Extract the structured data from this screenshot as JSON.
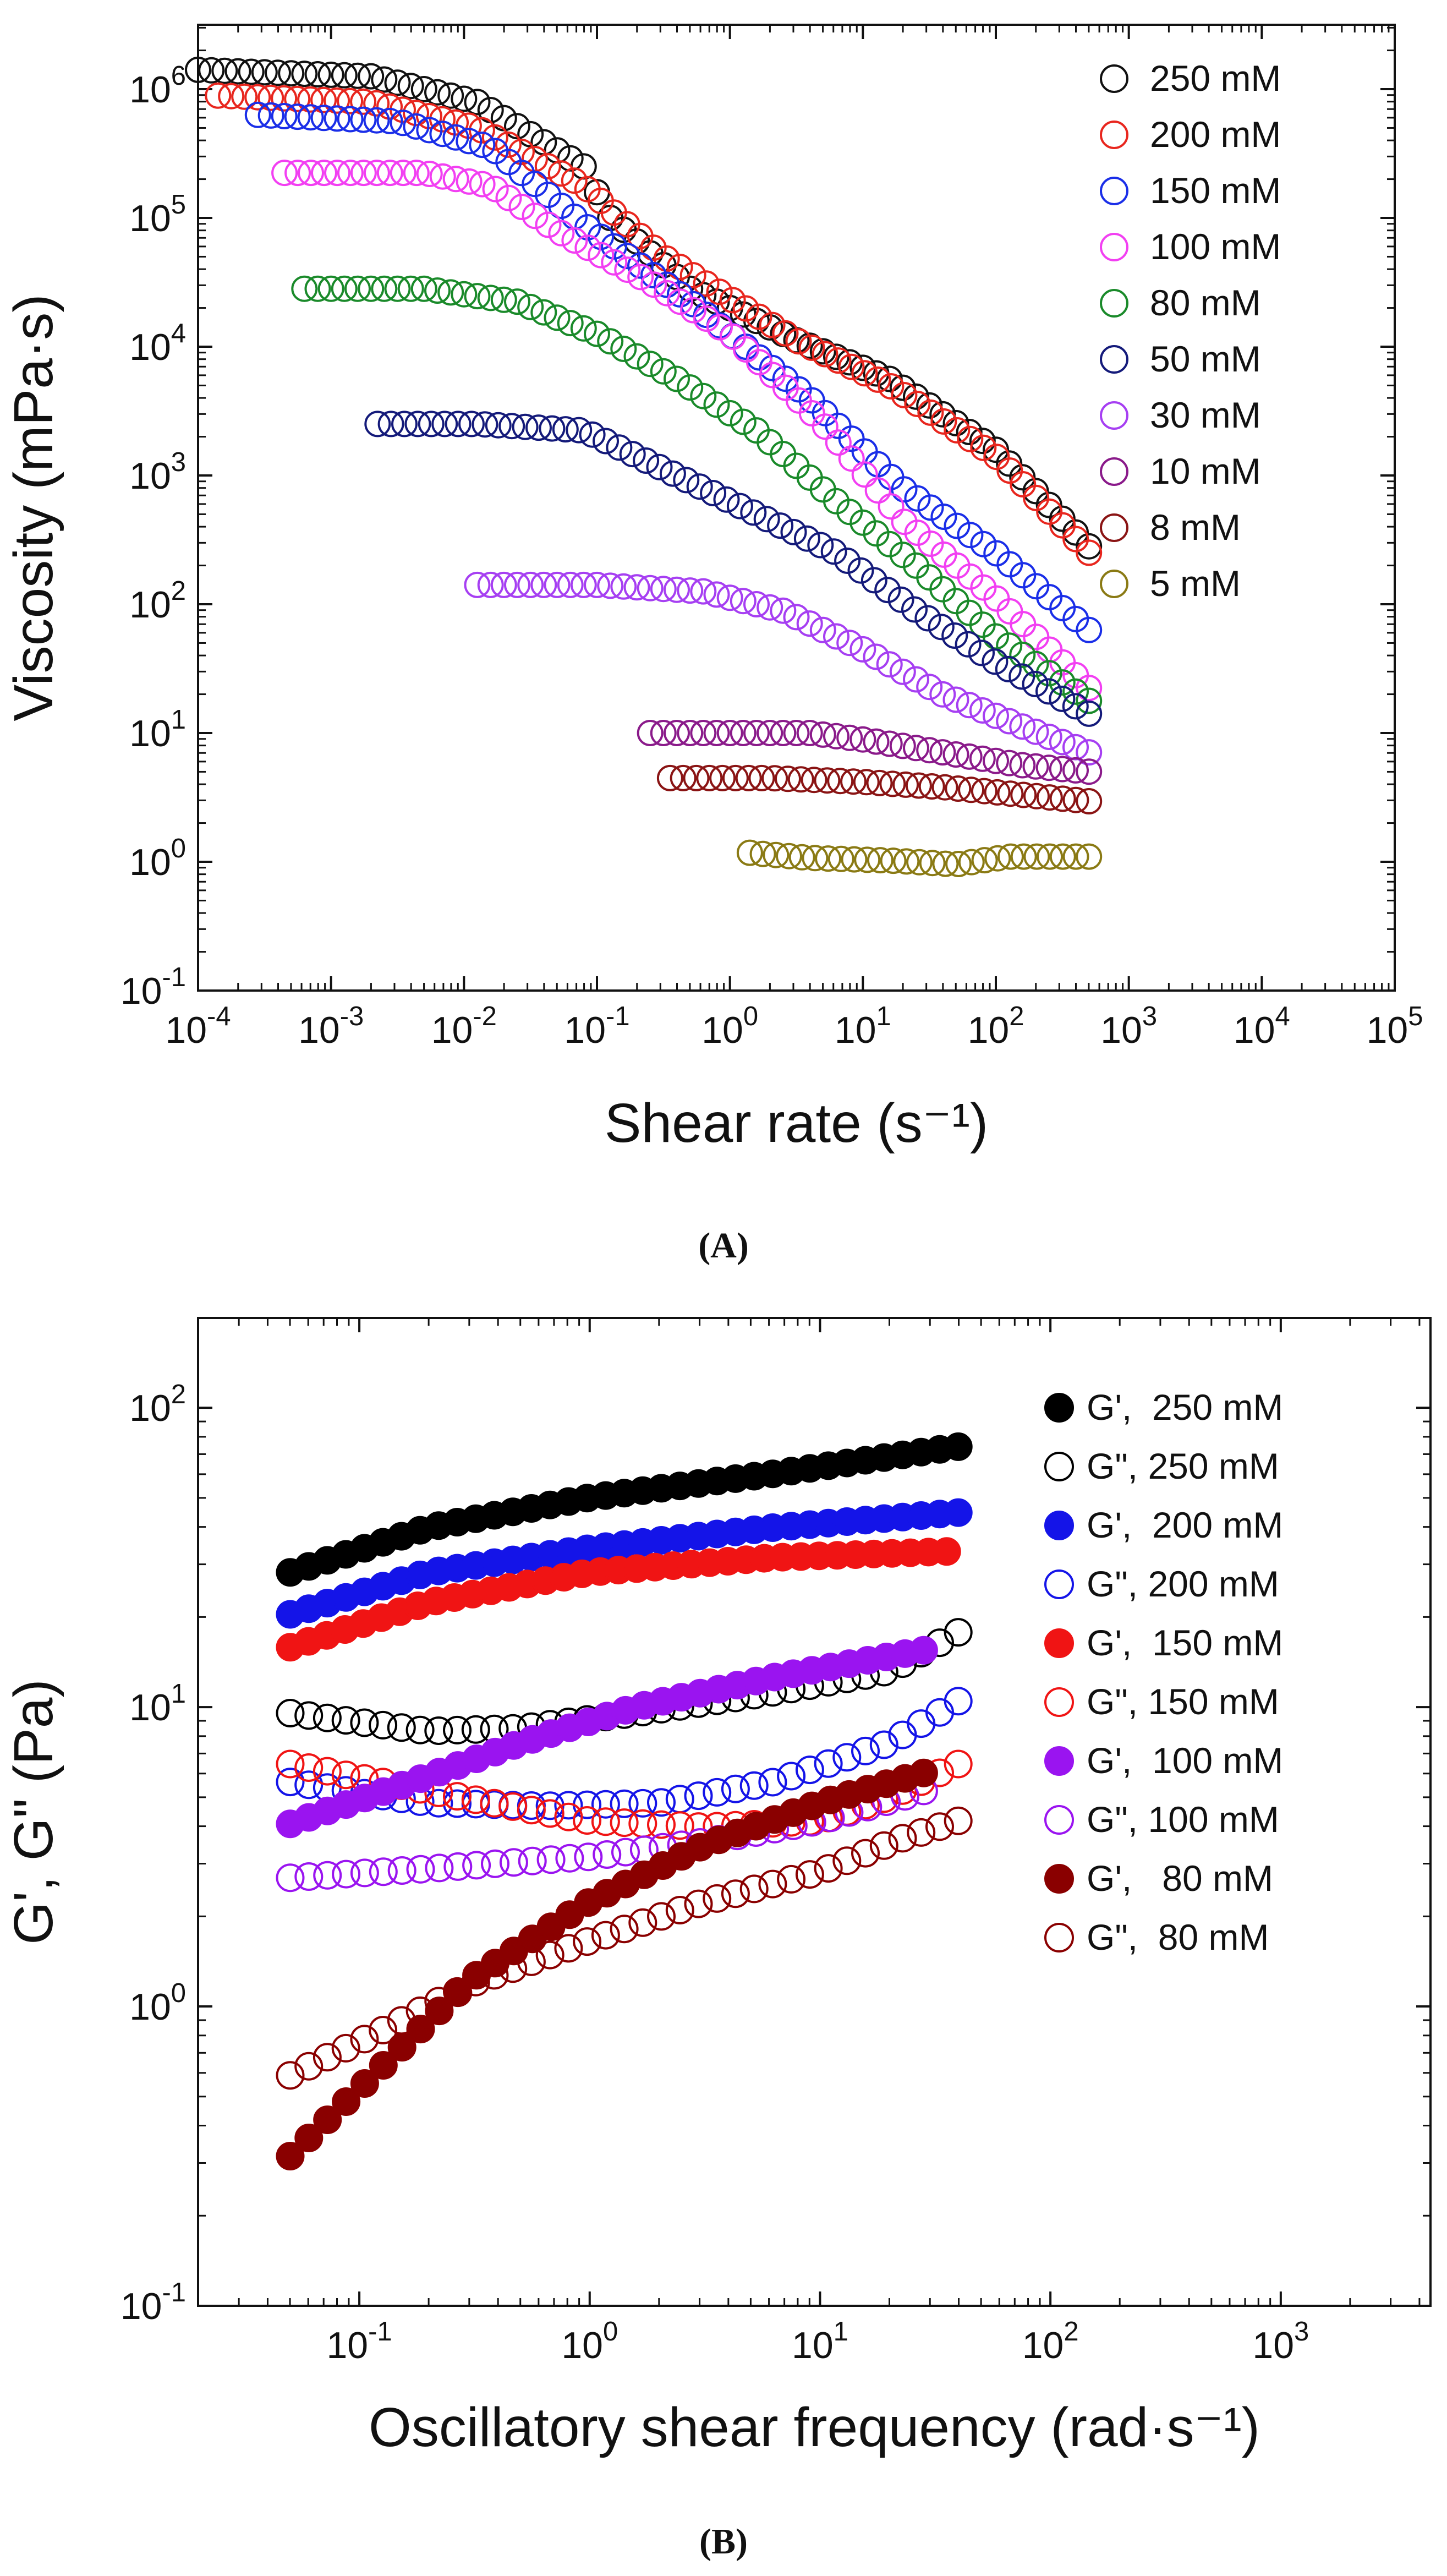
{
  "chart_data": [
    {
      "type": "scatter",
      "panel_label": "(A)",
      "xlabel": "Shear rate (s⁻¹)",
      "ylabel": "Viscosity (mPa·s)",
      "xscale": "log",
      "yscale": "log",
      "xlim_exp": [
        -4,
        5
      ],
      "ylim_exp": [
        -1,
        6.5
      ],
      "x_ticks": [
        {
          "base": "10",
          "exp": "-4"
        },
        {
          "base": "10",
          "exp": "-3"
        },
        {
          "base": "10",
          "exp": "-2"
        },
        {
          "base": "10",
          "exp": "-1"
        },
        {
          "base": "10",
          "exp": "0"
        },
        {
          "base": "10",
          "exp": "1"
        },
        {
          "base": "10",
          "exp": "2"
        },
        {
          "base": "10",
          "exp": "3"
        },
        {
          "base": "10",
          "exp": "4"
        },
        {
          "base": "10",
          "exp": "5"
        }
      ],
      "y_ticks": [
        {
          "base": "10",
          "exp": "-1"
        },
        {
          "base": "10",
          "exp": "0"
        },
        {
          "base": "10",
          "exp": "1"
        },
        {
          "base": "10",
          "exp": "2"
        },
        {
          "base": "10",
          "exp": "3"
        },
        {
          "base": "10",
          "exp": "4"
        },
        {
          "base": "10",
          "exp": "5"
        },
        {
          "base": "10",
          "exp": "6"
        }
      ],
      "legend_position": "top-right",
      "series": [
        {
          "name": "250 mM",
          "color": "#111111",
          "filled": false,
          "curve": [
            [
              -4,
              6.15
            ],
            [
              -2.7,
              6.1
            ],
            [
              -1.9,
              5.9
            ],
            [
              -1.1,
              5.4
            ],
            [
              -0.9,
              5.0
            ],
            [
              -0.3,
              4.45
            ],
            [
              0.5,
              4.05
            ],
            [
              1.2,
              3.75
            ],
            [
              2.0,
              3.2
            ],
            [
              2.7,
              2.45
            ]
          ]
        },
        {
          "name": "200 mM",
          "color": "#e8261e",
          "filled": false,
          "curve": [
            [
              -3.85,
              5.95
            ],
            [
              -2.7,
              5.9
            ],
            [
              -1.9,
              5.7
            ],
            [
              -1.1,
              5.25
            ],
            [
              -0.5,
              4.7
            ],
            [
              0.5,
              4.05
            ],
            [
              1.2,
              3.7
            ],
            [
              2.0,
              3.15
            ],
            [
              2.7,
              2.4
            ]
          ]
        },
        {
          "name": "150 mM",
          "color": "#1a2ee8",
          "filled": false,
          "curve": [
            [
              -3.55,
              5.8
            ],
            [
              -2.5,
              5.75
            ],
            [
              -1.8,
              5.55
            ],
            [
              -1.1,
              4.95
            ],
            [
              -0.3,
              4.35
            ],
            [
              0.6,
              3.6
            ],
            [
              1.3,
              2.9
            ],
            [
              2.0,
              2.4
            ],
            [
              2.7,
              1.8
            ]
          ]
        },
        {
          "name": "100 mM",
          "color": "#f23ff2",
          "filled": false,
          "curve": [
            [
              -3.35,
              5.35
            ],
            [
              -2.3,
              5.35
            ],
            [
              -1.8,
              5.25
            ],
            [
              -1.3,
              4.9
            ],
            [
              -0.6,
              4.5
            ],
            [
              0.0,
              4.1
            ],
            [
              0.7,
              3.4
            ],
            [
              1.3,
              2.65
            ],
            [
              2.0,
              2.05
            ],
            [
              2.7,
              1.35
            ]
          ]
        },
        {
          "name": "80 mM",
          "color": "#1a8a2a",
          "filled": false,
          "curve": [
            [
              -3.2,
              4.45
            ],
            [
              -2.3,
              4.45
            ],
            [
              -1.6,
              4.35
            ],
            [
              -1.0,
              4.1
            ],
            [
              -0.4,
              3.75
            ],
            [
              0.2,
              3.35
            ],
            [
              0.8,
              2.8
            ],
            [
              1.4,
              2.3
            ],
            [
              2.0,
              1.75
            ],
            [
              2.7,
              1.25
            ]
          ]
        },
        {
          "name": "50 mM",
          "color": "#141a7a",
          "filled": false,
          "curve": [
            [
              -2.65,
              3.4
            ],
            [
              -1.9,
              3.4
            ],
            [
              -1.1,
              3.35
            ],
            [
              -0.6,
              3.1
            ],
            [
              0.1,
              2.75
            ],
            [
              0.8,
              2.4
            ],
            [
              1.4,
              1.95
            ],
            [
              2.0,
              1.55
            ],
            [
              2.7,
              1.15
            ]
          ]
        },
        {
          "name": "30 mM",
          "color": "#a63ff2",
          "filled": false,
          "curve": [
            [
              -1.9,
              2.15
            ],
            [
              -1.0,
              2.15
            ],
            [
              -0.2,
              2.1
            ],
            [
              0.4,
              1.95
            ],
            [
              1.0,
              1.65
            ],
            [
              1.6,
              1.3
            ],
            [
              2.2,
              1.05
            ],
            [
              2.7,
              0.85
            ]
          ]
        },
        {
          "name": "10 mM",
          "color": "#8a1a8a",
          "filled": false,
          "curve": [
            [
              -0.6,
              1.0
            ],
            [
              0.0,
              1.0
            ],
            [
              0.6,
              1.0
            ],
            [
              1.0,
              0.95
            ],
            [
              1.6,
              0.85
            ],
            [
              2.2,
              0.75
            ],
            [
              2.7,
              0.7
            ]
          ]
        },
        {
          "name": "8 mM",
          "color": "#8a1414",
          "filled": false,
          "curve": [
            [
              -0.45,
              0.65
            ],
            [
              0.3,
              0.65
            ],
            [
              1.0,
              0.62
            ],
            [
              1.6,
              0.58
            ],
            [
              2.2,
              0.52
            ],
            [
              2.7,
              0.47
            ]
          ]
        },
        {
          "name": "5 mM",
          "color": "#8a7a14",
          "filled": false,
          "curve": [
            [
              0.15,
              0.07
            ],
            [
              0.6,
              0.03
            ],
            [
              1.2,
              0.01
            ],
            [
              1.7,
              -0.02
            ],
            [
              2.1,
              0.04
            ],
            [
              2.7,
              0.04
            ]
          ]
        }
      ]
    },
    {
      "type": "scatter",
      "panel_label": "(B)",
      "xlabel": "Oscillatory shear frequency (rad·s⁻¹)",
      "ylabel": "G', G\" (Pa)",
      "xscale": "log",
      "yscale": "log",
      "xlim_exp": [
        -1.7,
        3.65
      ],
      "ylim_exp": [
        -1,
        2.3
      ],
      "x_ticks": [
        {
          "base": "10",
          "exp": "-1"
        },
        {
          "base": "10",
          "exp": "0"
        },
        {
          "base": "10",
          "exp": "1"
        },
        {
          "base": "10",
          "exp": "2"
        },
        {
          "base": "10",
          "exp": "3"
        }
      ],
      "y_ticks": [
        {
          "base": "10",
          "exp": "-1"
        },
        {
          "base": "10",
          "exp": "0"
        },
        {
          "base": "10",
          "exp": "1"
        },
        {
          "base": "10",
          "exp": "2"
        }
      ],
      "legend_position": "top-right",
      "series": [
        {
          "name": "G',  250 mM",
          "color": "#000000",
          "filled": true,
          "curve": [
            [
              -1.3,
              1.45
            ],
            [
              -0.7,
              1.6
            ],
            [
              0.0,
              1.7
            ],
            [
              0.8,
              1.78
            ],
            [
              1.6,
              1.87
            ]
          ]
        },
        {
          "name": "G\", 250 mM",
          "color": "#000000",
          "filled": false,
          "curve": [
            [
              -1.3,
              0.98
            ],
            [
              -0.7,
              0.92
            ],
            [
              -0.3,
              0.93
            ],
            [
              0.2,
              0.98
            ],
            [
              0.8,
              1.05
            ],
            [
              1.3,
              1.12
            ],
            [
              1.6,
              1.25
            ]
          ]
        },
        {
          "name": "G',  200 mM",
          "color": "#1414e8",
          "filled": true,
          "curve": [
            [
              -1.3,
              1.31
            ],
            [
              -0.7,
              1.45
            ],
            [
              0.0,
              1.53
            ],
            [
              0.8,
              1.6
            ],
            [
              1.6,
              1.65
            ]
          ]
        },
        {
          "name": "G\", 200 mM",
          "color": "#1414e8",
          "filled": false,
          "curve": [
            [
              -1.3,
              0.75
            ],
            [
              -0.7,
              0.68
            ],
            [
              -0.2,
              0.67
            ],
            [
              0.3,
              0.68
            ],
            [
              0.8,
              0.75
            ],
            [
              1.3,
              0.88
            ],
            [
              1.6,
              1.02
            ]
          ]
        },
        {
          "name": "G',  150 mM",
          "color": "#f01414",
          "filled": true,
          "curve": [
            [
              -1.3,
              1.2
            ],
            [
              -0.7,
              1.35
            ],
            [
              0.0,
              1.45
            ],
            [
              0.8,
              1.5
            ],
            [
              1.55,
              1.52
            ]
          ]
        },
        {
          "name": "G\", 150 mM",
          "color": "#f01414",
          "filled": false,
          "curve": [
            [
              -1.3,
              0.81
            ],
            [
              -0.7,
              0.72
            ],
            [
              0.0,
              0.62
            ],
            [
              0.5,
              0.6
            ],
            [
              1.0,
              0.62
            ],
            [
              1.3,
              0.7
            ],
            [
              1.6,
              0.81
            ]
          ]
        },
        {
          "name": "G',  100 mM",
          "color": "#9a14f0",
          "filled": true,
          "curve": [
            [
              -1.3,
              0.61
            ],
            [
              -0.7,
              0.77
            ],
            [
              -0.3,
              0.88
            ],
            [
              0.2,
              1.0
            ],
            [
              0.8,
              1.1
            ],
            [
              1.45,
              1.19
            ]
          ]
        },
        {
          "name": "G\", 100 mM",
          "color": "#9a14f0",
          "filled": false,
          "curve": [
            [
              -1.3,
              0.43
            ],
            [
              -0.7,
              0.46
            ],
            [
              0.0,
              0.5
            ],
            [
              0.5,
              0.55
            ],
            [
              1.0,
              0.62
            ],
            [
              1.45,
              0.72
            ]
          ]
        },
        {
          "name": "G',   80 mM",
          "color": "#8a0000",
          "filled": true,
          "curve": [
            [
              -1.3,
              -0.5
            ],
            [
              -0.9,
              -0.2
            ],
            [
              -0.5,
              0.1
            ],
            [
              0.0,
              0.35
            ],
            [
              0.5,
              0.54
            ],
            [
              1.0,
              0.68
            ],
            [
              1.45,
              0.78
            ]
          ]
        },
        {
          "name": "G\",  80 mM",
          "color": "#8a0000",
          "filled": false,
          "curve": [
            [
              -1.3,
              -0.23
            ],
            [
              -0.9,
              -0.08
            ],
            [
              -0.5,
              0.08
            ],
            [
              0.0,
              0.22
            ],
            [
              0.5,
              0.35
            ],
            [
              1.0,
              0.45
            ],
            [
              1.35,
              0.56
            ],
            [
              1.6,
              0.62
            ]
          ]
        }
      ]
    }
  ]
}
